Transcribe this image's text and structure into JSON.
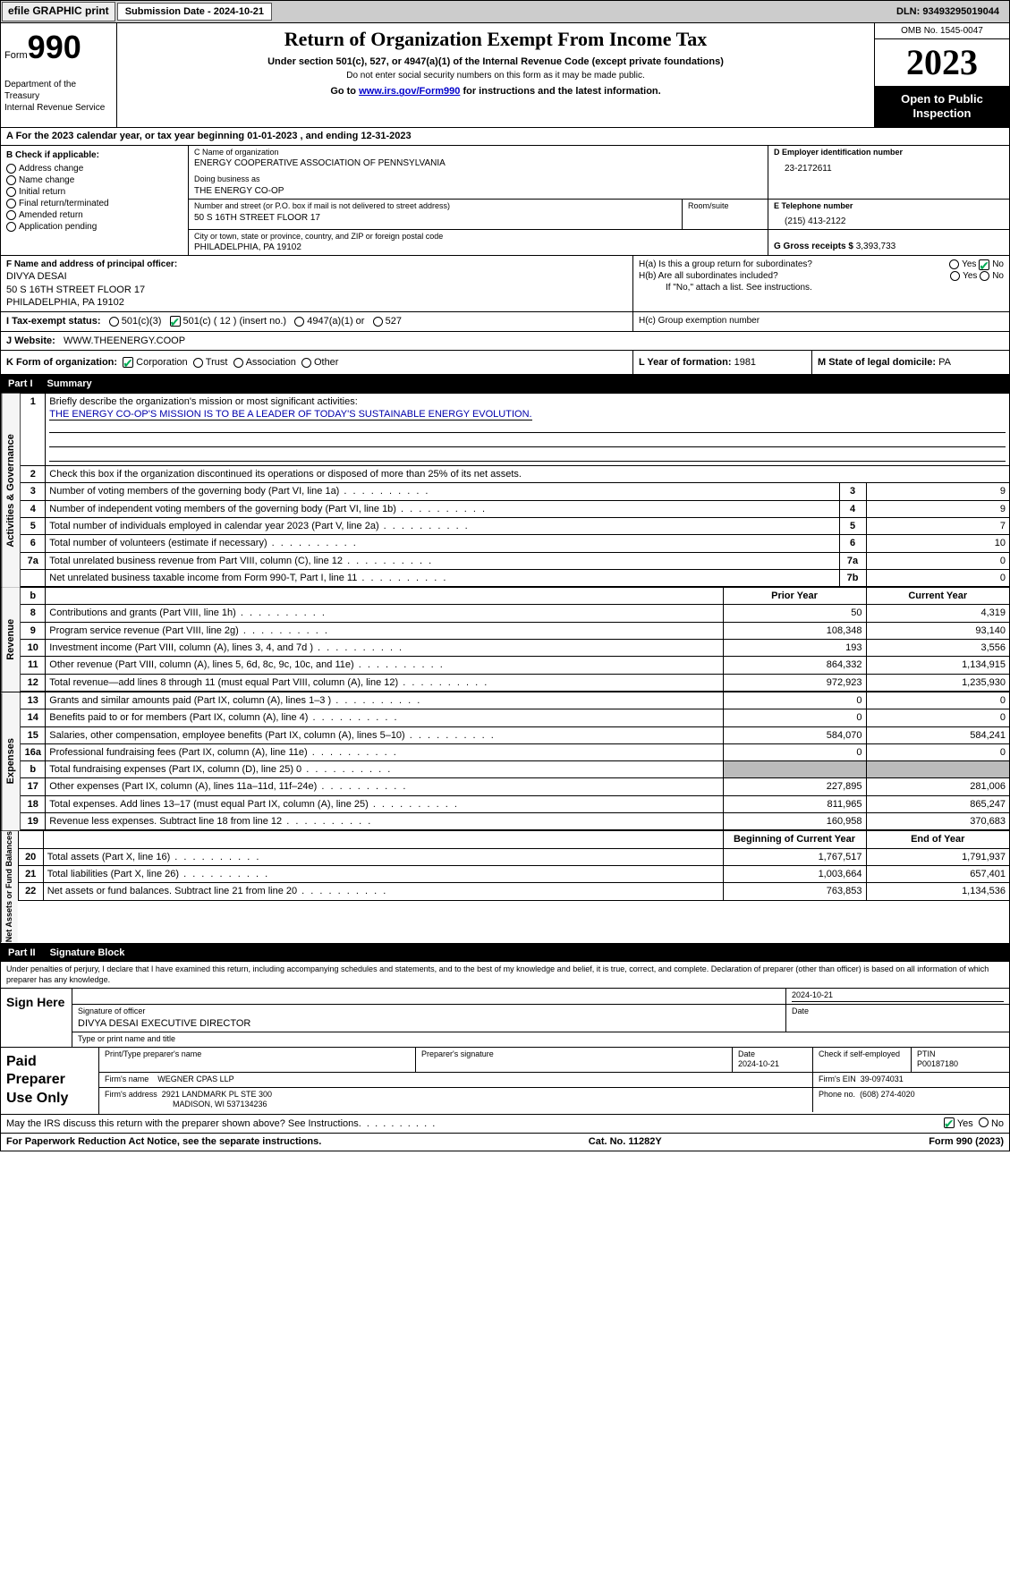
{
  "topbar": {
    "efile": "efile GRAPHIC print",
    "submission": "Submission Date - 2024-10-21",
    "dln": "DLN: 93493295019044"
  },
  "header": {
    "form_label": "Form",
    "form_no": "990",
    "title": "Return of Organization Exempt From Income Tax",
    "sub1": "Under section 501(c), 527, or 4947(a)(1) of the Internal Revenue Code (except private foundations)",
    "sub2": "Do not enter social security numbers on this form as it may be made public.",
    "sub3_pre": "Go to ",
    "sub3_link": "www.irs.gov/Form990",
    "sub3_post": " for instructions and the latest information.",
    "dept": "Department of the Treasury\nInternal Revenue Service",
    "omb": "OMB No. 1545-0047",
    "year": "2023",
    "openpub": "Open to Public Inspection"
  },
  "calyear": "A For the 2023 calendar year, or tax year beginning 01-01-2023    , and ending 12-31-2023",
  "boxB": {
    "hdr": "B Check if applicable:",
    "items": [
      "Address change",
      "Name change",
      "Initial return",
      "Final return/terminated",
      "Amended return",
      "Application pending"
    ]
  },
  "boxC": {
    "name_lbl": "C Name of organization",
    "name": "ENERGY COOPERATIVE ASSOCIATION OF PENNSYLVANIA",
    "dba_lbl": "Doing business as",
    "dba": "THE ENERGY CO-OP",
    "addr_lbl": "Number and street (or P.O. box if mail is not delivered to street address)",
    "addr": "50 S 16TH STREET FLOOR 17",
    "room_lbl": "Room/suite",
    "city_lbl": "City or town, state or province, country, and ZIP or foreign postal code",
    "city": "PHILADELPHIA, PA  19102"
  },
  "boxD": {
    "lbl": "D Employer identification number",
    "val": "23-2172611"
  },
  "boxE": {
    "lbl": "E Telephone number",
    "val": "(215) 413-2122"
  },
  "boxG": {
    "lbl": "G Gross receipts $",
    "val": "3,393,733"
  },
  "boxF": {
    "lbl": "F  Name and address of principal officer:",
    "name": "DIVYA DESAI",
    "addr1": "50 S 16TH STREET FLOOR 17",
    "addr2": "PHILADELPHIA, PA  19102"
  },
  "boxH": {
    "a_lbl": "H(a)  Is this a group return for subordinates?",
    "a_no_checked": true,
    "b_lbl": "H(b)  Are all subordinates included?",
    "b_note": "If \"No,\" attach a list. See instructions.",
    "c_lbl": "H(c)  Group exemption number"
  },
  "boxI": {
    "lbl": "I   Tax-exempt status:",
    "o501c3": "501(c)(3)",
    "o501c": "501(c) ( 12 ) (insert no.)",
    "o4947": "4947(a)(1) or",
    "o527": "527",
    "checked": "501c"
  },
  "boxJ": {
    "lbl": "J   Website:",
    "val": "WWW.THEENERGY.COOP"
  },
  "boxK": {
    "lbl": "K Form of organization:",
    "corp": "Corporation",
    "trust": "Trust",
    "assoc": "Association",
    "other": "Other",
    "checked": "corp"
  },
  "boxL": {
    "lbl": "L Year of formation:",
    "val": "1981"
  },
  "boxM": {
    "lbl": "M State of legal domicile:",
    "val": "PA"
  },
  "part1": {
    "num": "Part I",
    "title": "Summary"
  },
  "summary": {
    "q1_lbl": "Briefly describe the organization's mission or most significant activities:",
    "q1_val": "THE ENERGY CO-OP'S MISSION IS TO BE A LEADER OF TODAY'S SUSTAINABLE ENERGY EVOLUTION.",
    "q2": "Check this box         if the organization discontinued its operations or disposed of more than 25% of its net assets.",
    "rows_gov": [
      {
        "n": "3",
        "d": "Number of voting members of the governing body (Part VI, line 1a)",
        "c": "3",
        "v": "9"
      },
      {
        "n": "4",
        "d": "Number of independent voting members of the governing body (Part VI, line 1b)",
        "c": "4",
        "v": "9"
      },
      {
        "n": "5",
        "d": "Total number of individuals employed in calendar year 2023 (Part V, line 2a)",
        "c": "5",
        "v": "7"
      },
      {
        "n": "6",
        "d": "Total number of volunteers (estimate if necessary)",
        "c": "6",
        "v": "10"
      },
      {
        "n": "7a",
        "d": "Total unrelated business revenue from Part VIII, column (C), line 12",
        "c": "7a",
        "v": "0"
      },
      {
        "n": "",
        "d": "Net unrelated business taxable income from Form 990-T, Part I, line 11",
        "c": "7b",
        "v": "0"
      }
    ],
    "hdr_prior": "Prior Year",
    "hdr_current": "Current Year",
    "rows_rev": [
      {
        "n": "8",
        "d": "Contributions and grants (Part VIII, line 1h)",
        "p": "50",
        "c": "4,319"
      },
      {
        "n": "9",
        "d": "Program service revenue (Part VIII, line 2g)",
        "p": "108,348",
        "c": "93,140"
      },
      {
        "n": "10",
        "d": "Investment income (Part VIII, column (A), lines 3, 4, and 7d )",
        "p": "193",
        "c": "3,556"
      },
      {
        "n": "11",
        "d": "Other revenue (Part VIII, column (A), lines 5, 6d, 8c, 9c, 10c, and 11e)",
        "p": "864,332",
        "c": "1,134,915"
      },
      {
        "n": "12",
        "d": "Total revenue—add lines 8 through 11 (must equal Part VIII, column (A), line 12)",
        "p": "972,923",
        "c": "1,235,930"
      }
    ],
    "rows_exp": [
      {
        "n": "13",
        "d": "Grants and similar amounts paid (Part IX, column (A), lines 1–3 )",
        "p": "0",
        "c": "0"
      },
      {
        "n": "14",
        "d": "Benefits paid to or for members (Part IX, column (A), line 4)",
        "p": "0",
        "c": "0"
      },
      {
        "n": "15",
        "d": "Salaries, other compensation, employee benefits (Part IX, column (A), lines 5–10)",
        "p": "584,070",
        "c": "584,241"
      },
      {
        "n": "16a",
        "d": "Professional fundraising fees (Part IX, column (A), line 11e)",
        "p": "0",
        "c": "0"
      },
      {
        "n": "b",
        "d": "Total fundraising expenses (Part IX, column (D), line 25) 0",
        "p": "",
        "c": "",
        "grey": true
      },
      {
        "n": "17",
        "d": "Other expenses (Part IX, column (A), lines 11a–11d, 11f–24e)",
        "p": "227,895",
        "c": "281,006"
      },
      {
        "n": "18",
        "d": "Total expenses. Add lines 13–17 (must equal Part IX, column (A), line 25)",
        "p": "811,965",
        "c": "865,247"
      },
      {
        "n": "19",
        "d": "Revenue less expenses. Subtract line 18 from line 12",
        "p": "160,958",
        "c": "370,683"
      }
    ],
    "hdr_begin": "Beginning of Current Year",
    "hdr_end": "End of Year",
    "rows_net": [
      {
        "n": "20",
        "d": "Total assets (Part X, line 16)",
        "p": "1,767,517",
        "c": "1,791,937"
      },
      {
        "n": "21",
        "d": "Total liabilities (Part X, line 26)",
        "p": "1,003,664",
        "c": "657,401"
      },
      {
        "n": "22",
        "d": "Net assets or fund balances. Subtract line 21 from line 20",
        "p": "763,853",
        "c": "1,134,536"
      }
    ]
  },
  "sidelabels": {
    "gov": "Activities & Governance",
    "rev": "Revenue",
    "exp": "Expenses",
    "net": "Net Assets or Fund Balances"
  },
  "part2": {
    "num": "Part II",
    "title": "Signature Block"
  },
  "sigtext": "Under penalties of perjury, I declare that I have examined this return, including accompanying schedules and statements, and to the best of my knowledge and belief, it is true, correct, and complete. Declaration of preparer (other than officer) is based on all information of which preparer has any knowledge.",
  "sign": {
    "here": "Sign Here",
    "date": "2024-10-21",
    "sig_lbl": "Signature of officer",
    "officer": "DIVYA DESAI  EXECUTIVE DIRECTOR",
    "date_lbl": "Date",
    "type_lbl": "Type or print name and title"
  },
  "prep": {
    "label": "Paid Preparer Use Only",
    "name_lbl": "Print/Type preparer's name",
    "sig_lbl": "Preparer's signature",
    "date_lbl": "Date",
    "date": "2024-10-21",
    "self_lbl": "Check          if self-employed",
    "ptin_lbl": "PTIN",
    "ptin": "P00187180",
    "firm_name_lbl": "Firm's name",
    "firm_name": "WEGNER CPAS LLP",
    "firm_ein_lbl": "Firm's EIN",
    "firm_ein": "39-0974031",
    "firm_addr_lbl": "Firm's address",
    "firm_addr1": "2921 LANDMARK PL STE 300",
    "firm_addr2": "MADISON, WI  537134236",
    "phone_lbl": "Phone no.",
    "phone": "(608) 274-4020"
  },
  "discuss": {
    "q": "May the IRS discuss this return with the preparer shown above? See Instructions.",
    "yes": "Yes",
    "no": "No",
    "checked": "yes"
  },
  "footer": {
    "left": "For Paperwork Reduction Act Notice, see the separate instructions.",
    "mid": "Cat. No. 11282Y",
    "right_pre": "Form ",
    "right_form": "990",
    "right_post": " (2023)"
  }
}
